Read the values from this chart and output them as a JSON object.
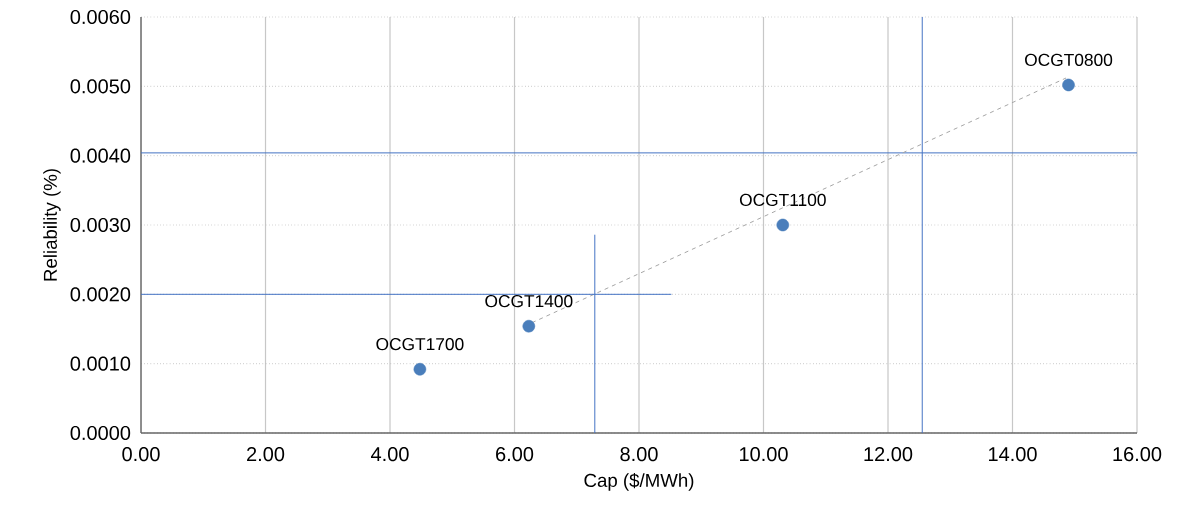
{
  "chart_data": {
    "type": "scatter",
    "xlabel": "Cap ($/MWh)",
    "ylabel": "Reliability (%)",
    "xlim": [
      0,
      16
    ],
    "ylim": [
      0,
      0.006
    ],
    "xticks": [
      {
        "value": 0,
        "label": "0.00"
      },
      {
        "value": 2,
        "label": "2.00"
      },
      {
        "value": 4,
        "label": "4.00"
      },
      {
        "value": 6,
        "label": "6.00"
      },
      {
        "value": 8,
        "label": "8.00"
      },
      {
        "value": 10,
        "label": "10.00"
      },
      {
        "value": 12,
        "label": "12.00"
      },
      {
        "value": 14,
        "label": "14.00"
      },
      {
        "value": 16,
        "label": "16.00"
      }
    ],
    "yticks": [
      {
        "value": 0,
        "label": "0.0000"
      },
      {
        "value": 0.001,
        "label": "0.0010"
      },
      {
        "value": 0.002,
        "label": "0.0020"
      },
      {
        "value": 0.003,
        "label": "0.0030"
      },
      {
        "value": 0.004,
        "label": "0.0040"
      },
      {
        "value": 0.005,
        "label": "0.0050"
      },
      {
        "value": 0.006,
        "label": "0.0060"
      }
    ],
    "grid": true,
    "series": [
      {
        "type": "line",
        "marker": "none",
        "color": "#a6a6a6",
        "line_style": "dashed",
        "x": [
          6.28,
          14.86
        ],
        "values": [
          0.00159,
          0.00512
        ]
      },
      {
        "type": "line",
        "marker": "none",
        "color": "#4472c4",
        "line_style": "solid",
        "x": [
          7.29,
          7.29
        ],
        "values": [
          0,
          0.00286
        ]
      },
      {
        "type": "line",
        "marker": "none",
        "color": "#4472c4",
        "line_style": "solid",
        "x": [
          0,
          8.52
        ],
        "values": [
          0.002,
          0.002
        ]
      },
      {
        "marker": "circle",
        "color": "#4a7ebb",
        "x": [
          4.48,
          6.23,
          10.31,
          14.9
        ],
        "values": [
          0.00092,
          0.00154,
          0.003,
          0.00502
        ]
      }
    ],
    "ref_lines": [
      {
        "axis": "x",
        "value": 12.55,
        "color": "#4472c4"
      },
      {
        "axis": "y",
        "value": 0.00404,
        "color": "#4472c4"
      }
    ],
    "annotations": [
      {
        "text": "OCGT1700",
        "x": 4.48,
        "y": 0.00092
      },
      {
        "text": "OCGT1400",
        "x": 6.23,
        "y": 0.00154
      },
      {
        "text": "OCGT1100",
        "x": 10.31,
        "y": 0.003
      },
      {
        "text": "OCGT0800",
        "x": 14.9,
        "y": 0.00502
      }
    ]
  }
}
